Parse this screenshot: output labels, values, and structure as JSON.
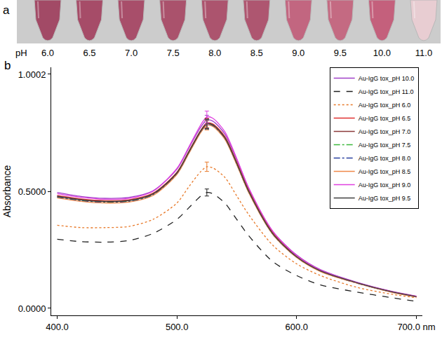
{
  "panel_a": {
    "letter": "a",
    "axis_label": "pH",
    "tubes": [
      {
        "label": "6.0",
        "color": "#a24a66"
      },
      {
        "label": "6.5",
        "color": "#a64c68"
      },
      {
        "label": "7.0",
        "color": "#a84e6a"
      },
      {
        "label": "7.5",
        "color": "#aa526c"
      },
      {
        "label": "8.0",
        "color": "#ac546e"
      },
      {
        "label": "8.5",
        "color": "#ae5670"
      },
      {
        "label": "9.0",
        "color": "#c26680"
      },
      {
        "label": "9.5",
        "color": "#c46a82"
      },
      {
        "label": "10.0",
        "color": "#c4607c"
      },
      {
        "label": "11.0",
        "color": "#e8cdd2"
      }
    ]
  },
  "chart_data": {
    "letter": "b",
    "type": "line",
    "y_label": "Absorbance",
    "x": [
      400,
      420,
      440,
      460,
      480,
      500,
      510,
      520,
      525,
      530,
      540,
      550,
      560,
      580,
      600,
      620,
      650,
      680,
      700
    ],
    "xlim": [
      395,
      705
    ],
    "xticks": [
      {
        "value": 400,
        "label": "400.0"
      },
      {
        "value": 500,
        "label": "500.0"
      },
      {
        "value": 600,
        "label": "600.0"
      },
      {
        "value": 700,
        "label": "700.0 nm"
      }
    ],
    "ylim": [
      -0.03,
      1.03
    ],
    "yticks": [
      {
        "value": 0,
        "label": "0.0000"
      },
      {
        "value": 0.5,
        "label": "0.5000"
      },
      {
        "value": 1.0002,
        "label": "1.0002"
      }
    ],
    "grid": false,
    "legend": "top right",
    "series": [
      {
        "name": "Au-IgG tox_pH 10.0",
        "color": "#a040c8",
        "line_style": "solid",
        "peak_error": 0.02,
        "values": [
          0.495,
          0.478,
          0.47,
          0.474,
          0.502,
          0.595,
          0.685,
          0.775,
          0.805,
          0.8,
          0.745,
          0.635,
          0.512,
          0.33,
          0.228,
          0.165,
          0.112,
          0.072,
          0.052
        ]
      },
      {
        "name": "Au-IgG tox_pH 11.0",
        "color": "#202020",
        "line_style": "dashed",
        "peak_error": 0.015,
        "values": [
          0.295,
          0.285,
          0.283,
          0.29,
          0.32,
          0.38,
          0.43,
          0.48,
          0.495,
          0.49,
          0.45,
          0.38,
          0.31,
          0.2,
          0.14,
          0.1,
          0.07,
          0.045,
          0.03
        ]
      },
      {
        "name": "Au-IgG tox_pH 6.0",
        "color": "#e87a2a",
        "line_style": "dotted",
        "peak_error": 0.02,
        "values": [
          0.355,
          0.345,
          0.345,
          0.35,
          0.38,
          0.45,
          0.52,
          0.585,
          0.605,
          0.6,
          0.56,
          0.48,
          0.4,
          0.27,
          0.19,
          0.14,
          0.09,
          0.06,
          0.045
        ]
      },
      {
        "name": "Au-IgG tox_pH 6.5",
        "color": "#e03030",
        "line_style": "solid",
        "peak_error": 0.02,
        "values": [
          0.482,
          0.467,
          0.46,
          0.464,
          0.492,
          0.582,
          0.672,
          0.762,
          0.792,
          0.788,
          0.735,
          0.625,
          0.505,
          0.325,
          0.225,
          0.162,
          0.11,
          0.071,
          0.051
        ]
      },
      {
        "name": "Au-IgG tox_pH 7.0",
        "color": "#8b3a3a",
        "line_style": "solid",
        "peak_error": 0.02,
        "values": [
          0.48,
          0.465,
          0.458,
          0.462,
          0.49,
          0.58,
          0.67,
          0.76,
          0.79,
          0.785,
          0.73,
          0.62,
          0.5,
          0.32,
          0.22,
          0.16,
          0.11,
          0.07,
          0.05
        ]
      },
      {
        "name": "Au-IgG tox_pH 7.5",
        "color": "#3cb83c",
        "line_style": "dashdot",
        "peak_error": 0.02,
        "values": [
          0.476,
          0.461,
          0.454,
          0.458,
          0.486,
          0.576,
          0.666,
          0.756,
          0.786,
          0.781,
          0.727,
          0.617,
          0.498,
          0.318,
          0.219,
          0.159,
          0.109,
          0.069,
          0.049
        ]
      },
      {
        "name": "Au-IgG tox_pH 8.0",
        "color": "#2840a0",
        "line_style": "dashdot",
        "peak_error": 0.02,
        "values": [
          0.474,
          0.459,
          0.452,
          0.456,
          0.484,
          0.574,
          0.664,
          0.754,
          0.784,
          0.779,
          0.725,
          0.615,
          0.496,
          0.317,
          0.218,
          0.158,
          0.108,
          0.069,
          0.049
        ]
      },
      {
        "name": "Au-IgG tox_pH 8.5",
        "color": "#f08848",
        "line_style": "solid",
        "peak_error": 0.02,
        "values": [
          0.472,
          0.457,
          0.45,
          0.454,
          0.482,
          0.572,
          0.662,
          0.752,
          0.782,
          0.777,
          0.723,
          0.613,
          0.494,
          0.316,
          0.217,
          0.157,
          0.108,
          0.068,
          0.048
        ]
      },
      {
        "name": "Au-IgG tox_pH 9.0",
        "color": "#e040e0",
        "line_style": "solid",
        "peak_error": 0.025,
        "values": [
          0.49,
          0.474,
          0.466,
          0.47,
          0.5,
          0.598,
          0.69,
          0.785,
          0.818,
          0.812,
          0.755,
          0.64,
          0.515,
          0.33,
          0.226,
          0.163,
          0.111,
          0.071,
          0.051
        ]
      },
      {
        "name": "Au-IgG tox_pH 9.5",
        "color": "#404040",
        "line_style": "solid",
        "peak_error": 0.02,
        "values": [
          0.478,
          0.463,
          0.456,
          0.46,
          0.488,
          0.578,
          0.668,
          0.758,
          0.788,
          0.783,
          0.729,
          0.619,
          0.499,
          0.319,
          0.22,
          0.16,
          0.11,
          0.07,
          0.05
        ]
      }
    ]
  }
}
